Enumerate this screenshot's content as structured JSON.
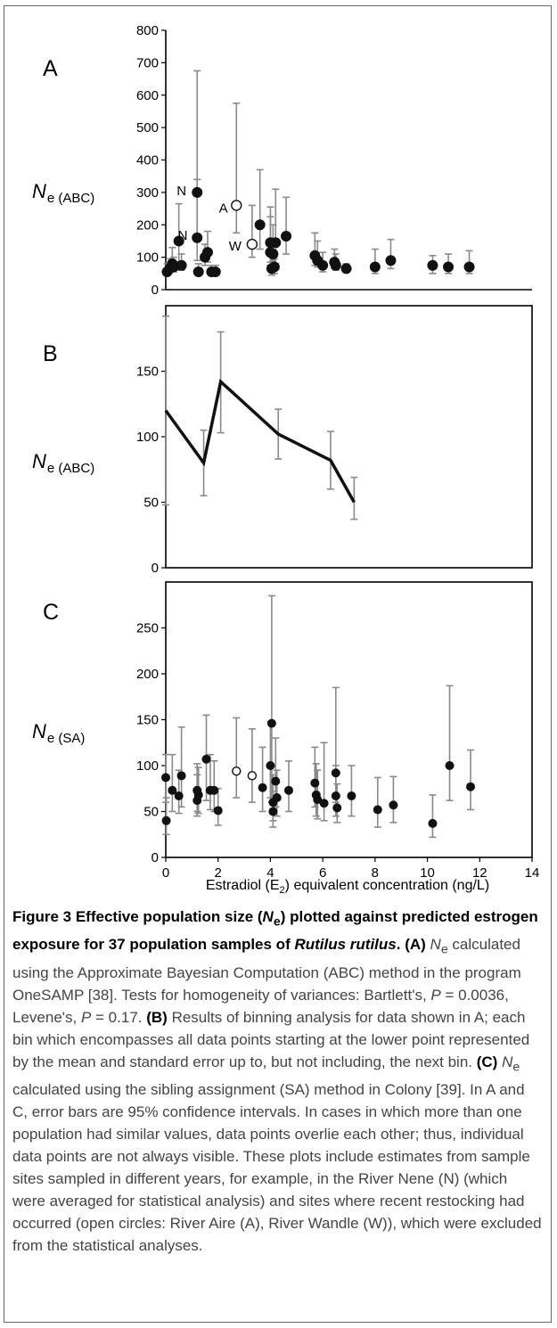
{
  "chart_data": [
    {
      "panel": "A",
      "type": "scatter",
      "ylabel": "N",
      "ylabel_sub": "e (ABC)",
      "ylim": [
        0,
        800
      ],
      "yticks": [
        "0",
        "100",
        "200",
        "300",
        "400",
        "500",
        "600",
        "700",
        "800"
      ],
      "xlim": [
        0,
        14
      ],
      "points": [
        {
          "x": 0.05,
          "y": 55,
          "lo": 50,
          "hi": 80,
          "open": false
        },
        {
          "x": 0.15,
          "y": 65,
          "lo": 55,
          "hi": 95,
          "open": false
        },
        {
          "x": 0.25,
          "y": 80,
          "lo": 60,
          "hi": 130,
          "open": false
        },
        {
          "x": 0.3,
          "y": 70,
          "lo": 55,
          "hi": 100,
          "open": false
        },
        {
          "x": 0.5,
          "y": 150,
          "lo": 85,
          "hi": 265,
          "open": false
        },
        {
          "x": 0.6,
          "y": 75,
          "lo": 60,
          "hi": 110,
          "open": false
        },
        {
          "x": 1.2,
          "y": 300,
          "lo": 160,
          "hi": 675,
          "open": false
        },
        {
          "x": 1.2,
          "y": 160,
          "lo": 90,
          "hi": 340,
          "open": false
        },
        {
          "x": 1.25,
          "y": 55,
          "lo": 45,
          "hi": 80,
          "open": false
        },
        {
          "x": 1.5,
          "y": 100,
          "lo": 75,
          "hi": 140,
          "open": false
        },
        {
          "x": 1.6,
          "y": 115,
          "lo": 85,
          "hi": 180,
          "open": false
        },
        {
          "x": 1.75,
          "y": 55,
          "lo": 45,
          "hi": 75,
          "open": false
        },
        {
          "x": 1.9,
          "y": 55,
          "lo": 45,
          "hi": 75,
          "open": false
        },
        {
          "x": 2.7,
          "y": 260,
          "lo": 175,
          "hi": 575,
          "open": true
        },
        {
          "x": 3.3,
          "y": 140,
          "lo": 100,
          "hi": 260,
          "open": true
        },
        {
          "x": 3.6,
          "y": 200,
          "lo": 125,
          "hi": 370,
          "open": false
        },
        {
          "x": 4.0,
          "y": 145,
          "lo": 85,
          "hi": 255,
          "open": false
        },
        {
          "x": 4.0,
          "y": 115,
          "lo": 75,
          "hi": 225,
          "open": false
        },
        {
          "x": 4.05,
          "y": 65,
          "lo": 45,
          "hi": 100,
          "open": false
        },
        {
          "x": 4.1,
          "y": 110,
          "lo": 70,
          "hi": 200,
          "open": false
        },
        {
          "x": 4.15,
          "y": 70,
          "lo": 50,
          "hi": 95,
          "open": false
        },
        {
          "x": 4.2,
          "y": 145,
          "lo": 80,
          "hi": 310,
          "open": false
        },
        {
          "x": 4.6,
          "y": 165,
          "lo": 110,
          "hi": 285,
          "open": false
        },
        {
          "x": 5.7,
          "y": 105,
          "lo": 75,
          "hi": 175,
          "open": false
        },
        {
          "x": 5.8,
          "y": 90,
          "lo": 70,
          "hi": 150,
          "open": false
        },
        {
          "x": 6.0,
          "y": 75,
          "lo": 55,
          "hi": 115,
          "open": false
        },
        {
          "x": 6.45,
          "y": 85,
          "lo": 65,
          "hi": 125,
          "open": false
        },
        {
          "x": 6.5,
          "y": 75,
          "lo": 60,
          "hi": 110,
          "open": false
        },
        {
          "x": 6.9,
          "y": 65,
          "lo": 55,
          "hi": 80,
          "open": false
        },
        {
          "x": 8.0,
          "y": 70,
          "lo": 50,
          "hi": 125,
          "open": false
        },
        {
          "x": 8.6,
          "y": 90,
          "lo": 65,
          "hi": 155,
          "open": false
        },
        {
          "x": 10.2,
          "y": 75,
          "lo": 50,
          "hi": 105,
          "open": false
        },
        {
          "x": 10.8,
          "y": 70,
          "lo": 50,
          "hi": 110,
          "open": false
        },
        {
          "x": 11.6,
          "y": 70,
          "lo": 50,
          "hi": 120,
          "open": false
        }
      ],
      "annotations": [
        {
          "text": "N",
          "x": 0.6,
          "y": 305
        },
        {
          "text": "N",
          "x": 0.65,
          "y": 168
        },
        {
          "text": "A",
          "x": 2.2,
          "y": 252
        },
        {
          "text": "W",
          "x": 2.65,
          "y": 135
        }
      ]
    },
    {
      "panel": "B",
      "type": "line",
      "ylabel": "N",
      "ylabel_sub": "e (ABC)",
      "ylim": [
        0,
        200
      ],
      "yticks": [
        "0",
        "50",
        "100",
        "150"
      ],
      "xlim": [
        0,
        14
      ],
      "points": [
        {
          "x": 0,
          "y": 120,
          "lo": 48,
          "hi": 192
        },
        {
          "x": 1.45,
          "y": 80,
          "lo": 55,
          "hi": 105
        },
        {
          "x": 2.1,
          "y": 142,
          "lo": 103,
          "hi": 180
        },
        {
          "x": 4.3,
          "y": 102,
          "lo": 83,
          "hi": 121
        },
        {
          "x": 6.3,
          "y": 82,
          "lo": 60,
          "hi": 104
        },
        {
          "x": 7.2,
          "y": 50,
          "lo": 37,
          "hi": 69
        }
      ]
    },
    {
      "panel": "C",
      "type": "scatter",
      "ylabel": "N",
      "ylabel_sub": "e (SA)",
      "ylim": [
        0,
        300
      ],
      "yticks": [
        "0",
        "50",
        "100",
        "150",
        "200",
        "250"
      ],
      "xlim": [
        0,
        14
      ],
      "xticks": [
        "0",
        "2",
        "4",
        "6",
        "8",
        "10",
        "12",
        "14"
      ],
      "xlabel": "Estradiol (E",
      "xlabel_sub": "2",
      "xlabel_tail": ") equivalent concentration (ng/L)",
      "points": [
        {
          "x": 0.0,
          "y": 87,
          "lo": 60,
          "hi": 112,
          "open": false
        },
        {
          "x": 0.02,
          "y": 40,
          "lo": 25,
          "hi": 65,
          "open": false
        },
        {
          "x": 0.25,
          "y": 73,
          "lo": 50,
          "hi": 112,
          "open": false
        },
        {
          "x": 0.5,
          "y": 67,
          "lo": 48,
          "hi": 95,
          "open": false
        },
        {
          "x": 0.6,
          "y": 89,
          "lo": 55,
          "hi": 142,
          "open": false
        },
        {
          "x": 1.2,
          "y": 73,
          "lo": 50,
          "hi": 102,
          "open": false
        },
        {
          "x": 1.2,
          "y": 62,
          "lo": 45,
          "hi": 90,
          "open": false
        },
        {
          "x": 1.25,
          "y": 68,
          "lo": 48,
          "hi": 98,
          "open": false
        },
        {
          "x": 1.55,
          "y": 107,
          "lo": 62,
          "hi": 155,
          "open": false
        },
        {
          "x": 1.7,
          "y": 73,
          "lo": 52,
          "hi": 112,
          "open": false
        },
        {
          "x": 1.85,
          "y": 73,
          "lo": 50,
          "hi": 105,
          "open": false
        },
        {
          "x": 2.0,
          "y": 51,
          "lo": 35,
          "hi": 75,
          "open": false
        },
        {
          "x": 2.7,
          "y": 94,
          "lo": 65,
          "hi": 152,
          "open": true
        },
        {
          "x": 3.3,
          "y": 89,
          "lo": 60,
          "hi": 140,
          "open": true
        },
        {
          "x": 3.7,
          "y": 76,
          "lo": 50,
          "hi": 120,
          "open": false
        },
        {
          "x": 4.0,
          "y": 100,
          "lo": 65,
          "hi": 148,
          "open": false
        },
        {
          "x": 4.05,
          "y": 146,
          "lo": 60,
          "hi": 285,
          "open": false
        },
        {
          "x": 4.1,
          "y": 60,
          "lo": 40,
          "hi": 90,
          "open": false
        },
        {
          "x": 4.1,
          "y": 50,
          "lo": 33,
          "hi": 72,
          "open": false
        },
        {
          "x": 4.2,
          "y": 83,
          "lo": 55,
          "hi": 130,
          "open": false
        },
        {
          "x": 4.25,
          "y": 65,
          "lo": 45,
          "hi": 95,
          "open": false
        },
        {
          "x": 4.7,
          "y": 73,
          "lo": 50,
          "hi": 105,
          "open": false
        },
        {
          "x": 5.7,
          "y": 81,
          "lo": 55,
          "hi": 120,
          "open": false
        },
        {
          "x": 5.75,
          "y": 68,
          "lo": 45,
          "hi": 102,
          "open": false
        },
        {
          "x": 5.8,
          "y": 63,
          "lo": 42,
          "hi": 95,
          "open": false
        },
        {
          "x": 6.05,
          "y": 59,
          "lo": 40,
          "hi": 125,
          "open": false
        },
        {
          "x": 6.5,
          "y": 92,
          "lo": 60,
          "hi": 185,
          "open": false
        },
        {
          "x": 6.5,
          "y": 67,
          "lo": 45,
          "hi": 100,
          "open": false
        },
        {
          "x": 6.55,
          "y": 54,
          "lo": 38,
          "hi": 80,
          "open": false
        },
        {
          "x": 7.1,
          "y": 67,
          "lo": 45,
          "hi": 100,
          "open": false
        },
        {
          "x": 8.1,
          "y": 52,
          "lo": 33,
          "hi": 87,
          "open": false
        },
        {
          "x": 8.7,
          "y": 57,
          "lo": 38,
          "hi": 88,
          "open": false
        },
        {
          "x": 10.2,
          "y": 37,
          "lo": 22,
          "hi": 68,
          "open": false
        },
        {
          "x": 10.85,
          "y": 100,
          "lo": 62,
          "hi": 187,
          "open": false
        },
        {
          "x": 11.65,
          "y": 77,
          "lo": 52,
          "hi": 117,
          "open": false
        }
      ]
    }
  ],
  "caption": {
    "title_a": "Figure 3 Effective population size (",
    "title_ne": "N",
    "title_sub": "e",
    "title_b": ") plotted against predicted estrogen exposure for 37 population samples of ",
    "title_species": "Rutilus rutilus",
    "title_end": ".",
    "label_a": "(A)",
    "text_a1": " N",
    "text_a1_sub": "e",
    "text_a2": " calculated using the Approximate Bayesian Computation (ABC) method in the program OneSAMP [38]. Tests for homogeneity of variances: Bartlett's, ",
    "p_a": "P",
    "text_a3": " = 0.0036, Levene's, ",
    "p_b": "P",
    "text_a4": " = 0.17. ",
    "label_b": "(B)",
    "text_b": " Results of binning analysis for data shown in A; each bin which encompasses all data points starting at the lower point represented by the mean and standard error up to, but not including, the next bin. ",
    "label_c": "(C)",
    "text_c1": " N",
    "text_c1_sub": "e",
    "text_c2": " calculated using the sibling assignment (SA) method in Colony [39]. In A and C, error bars are 95% confidence intervals. In cases in which more than one population had similar values, data points overlie each other; thus, individual data points are not always visible. These plots include estimates from sample sites sampled in different years, for example, in the River Nene (N) (which were averaged for statistical analysis) and sites where recent restocking had occurred (open circles: River Aire (A), River Wandle (W)), which were excluded from the statistical analyses."
  }
}
